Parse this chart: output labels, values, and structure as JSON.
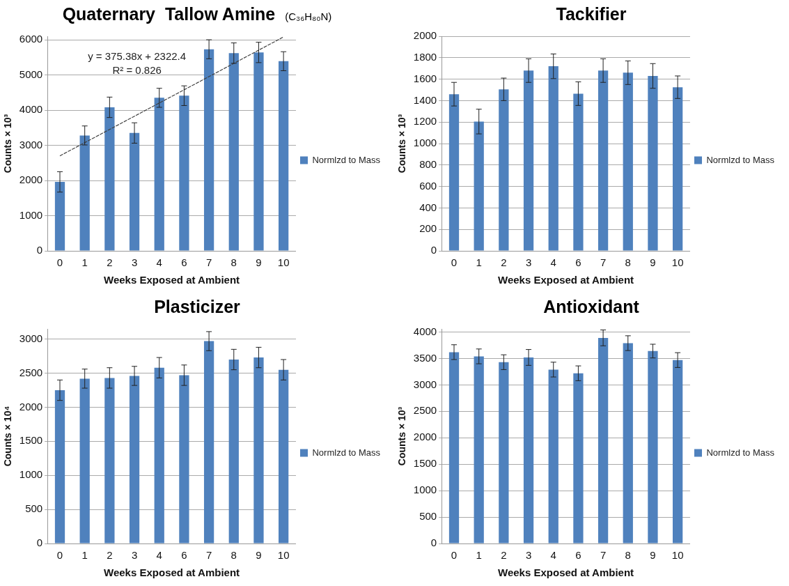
{
  "chart_data": [
    {
      "type": "bar",
      "title": "Quaternary  Tallow Amine",
      "subtitle": "(C₃₆H₈₀N)",
      "xlabel": "Weeks Exposed at Ambient",
      "ylabel": "Counts × 10³",
      "categories": [
        "0",
        "1",
        "2",
        "3",
        "4",
        "6",
        "7",
        "8",
        "9",
        "10"
      ],
      "series": [
        {
          "name": "Normlzd to Mass",
          "color": "#4f81bd",
          "values": [
            1960,
            3280,
            4080,
            3350,
            4350,
            4410,
            5730,
            5620,
            5640,
            5390
          ],
          "errors": [
            290,
            270,
            290,
            290,
            270,
            280,
            270,
            290,
            290,
            270
          ]
        },
        {
          "type": "line",
          "color": "#404040",
          "x": [
            "0",
            "10"
          ],
          "values": [
            2700,
            6080
          ],
          "line_style": "dashed",
          "marker": "none"
        }
      ],
      "ylim": [
        0,
        6100
      ],
      "yticks": [
        0,
        1000,
        2000,
        3000,
        4000,
        5000,
        6000
      ],
      "grid": "y",
      "legend": "right",
      "annotations": [
        "y = 375.38x + 2322.4",
        "R² = 0.826"
      ]
    },
    {
      "type": "bar",
      "title": "Tackifier",
      "xlabel": "Weeks Exposed at Ambient",
      "ylabel": "Counts × 10³",
      "categories": [
        "0",
        "1",
        "2",
        "3",
        "4",
        "6",
        "7",
        "8",
        "9",
        "10"
      ],
      "series": [
        {
          "name": "Normlzd to Mass",
          "color": "#4f81bd",
          "values": [
            1460,
            1205,
            1505,
            1680,
            1720,
            1465,
            1680,
            1660,
            1630,
            1525
          ],
          "errors": [
            110,
            115,
            105,
            110,
            115,
            110,
            110,
            110,
            115,
            105
          ]
        }
      ],
      "ylim": [
        0,
        2000
      ],
      "yticks": [
        0,
        200,
        400,
        600,
        800,
        1000,
        1200,
        1400,
        1600,
        1800,
        2000
      ],
      "grid": "y",
      "legend": "right"
    },
    {
      "type": "bar",
      "title": "Plasticizer",
      "xlabel": "Weeks Exposed at Ambient",
      "ylabel": "Counts × 10⁴",
      "categories": [
        "0",
        "1",
        "2",
        "3",
        "4",
        "6",
        "7",
        "8",
        "9",
        "10"
      ],
      "series": [
        {
          "name": "Normlzd to Mass",
          "color": "#4f81bd",
          "values": [
            2250,
            2420,
            2430,
            2460,
            2580,
            2470,
            2970,
            2700,
            2730,
            2550
          ],
          "errors": [
            150,
            140,
            150,
            140,
            150,
            150,
            140,
            150,
            150,
            150
          ]
        }
      ],
      "ylim": [
        0,
        3150
      ],
      "yticks": [
        0,
        500,
        1000,
        1500,
        2000,
        2500,
        3000
      ],
      "grid": "y",
      "legend": "right"
    },
    {
      "type": "bar",
      "title": "Antioxidant",
      "xlabel": "Weeks Exposed at Ambient",
      "ylabel": "Counts × 10³",
      "categories": [
        "0",
        "1",
        "2",
        "3",
        "4",
        "6",
        "7",
        "8",
        "9",
        "10"
      ],
      "series": [
        {
          "name": "Normlzd to Mass",
          "color": "#4f81bd",
          "values": [
            3620,
            3540,
            3430,
            3520,
            3290,
            3220,
            3890,
            3790,
            3640,
            3470
          ],
          "errors": [
            140,
            140,
            140,
            150,
            140,
            140,
            150,
            140,
            130,
            140
          ]
        }
      ],
      "ylim": [
        0,
        4060
      ],
      "yticks": [
        0,
        500,
        1000,
        1500,
        2000,
        2500,
        3000,
        3500,
        4000
      ],
      "grid": "y",
      "legend": "right"
    }
  ]
}
